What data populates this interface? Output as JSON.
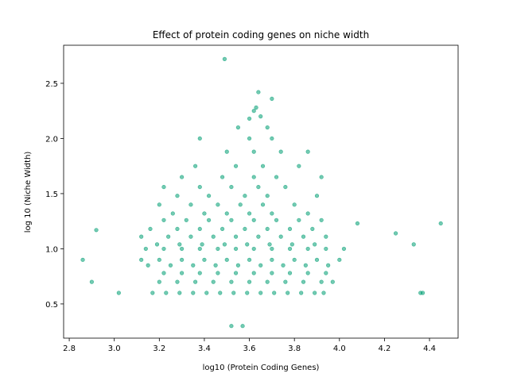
{
  "chart_data": {
    "type": "scatter",
    "title": "Effect of protein coding genes on niche width",
    "xlabel": "log10 (Protein Coding Genes)",
    "ylabel": "log 10 (Niche Width)",
    "color": "#009e73",
    "xlim": [
      2.775,
      4.527
    ],
    "ylim": [
      0.19,
      2.845
    ],
    "xticks": [
      2.8,
      {
        "value": 3,
        "label": "3.0"
      },
      3.2,
      3.4,
      3.6,
      3.8,
      {
        "value": 4,
        "label": "4.0"
      },
      4.2,
      4.4
    ],
    "yticks": [
      0.5,
      {
        "value": 1,
        "label": "1.0"
      },
      1.5,
      {
        "value": 2,
        "label": "2.0"
      },
      2.5
    ],
    "x": [
      2.86,
      2.9,
      2.92,
      3.02,
      4.08,
      4.25,
      4.33,
      4.36,
      4.37,
      4.45,
      3.49,
      3.52,
      3.57,
      3.64,
      3.63,
      3.7,
      3.65,
      3.62,
      3.6,
      3.17,
      3.23,
      3.29,
      3.35,
      3.41,
      3.47,
      3.53,
      3.59,
      3.65,
      3.71,
      3.77,
      3.83,
      3.89,
      3.93,
      3.2,
      3.28,
      3.36,
      3.44,
      3.52,
      3.6,
      3.68,
      3.76,
      3.84,
      3.92,
      3.97,
      3.22,
      3.3,
      3.38,
      3.46,
      3.54,
      3.62,
      3.7,
      3.78,
      3.86,
      3.94,
      3.15,
      3.25,
      3.35,
      3.45,
      3.55,
      3.65,
      3.75,
      3.85,
      3.95,
      3.12,
      3.2,
      3.3,
      3.4,
      3.5,
      3.6,
      3.7,
      3.8,
      3.9,
      4.0,
      3.14,
      3.22,
      3.3,
      3.38,
      3.46,
      3.54,
      3.62,
      3.7,
      3.78,
      3.86,
      3.94,
      4.02,
      3.19,
      3.29,
      3.39,
      3.49,
      3.59,
      3.69,
      3.79,
      3.89,
      3.12,
      3.24,
      3.34,
      3.44,
      3.54,
      3.64,
      3.74,
      3.84,
      3.94,
      3.16,
      3.28,
      3.38,
      3.48,
      3.58,
      3.68,
      3.78,
      3.88,
      3.22,
      3.32,
      3.42,
      3.52,
      3.62,
      3.72,
      3.82,
      3.92,
      3.26,
      3.4,
      3.5,
      3.6,
      3.7,
      3.86,
      3.2,
      3.34,
      3.46,
      3.56,
      3.66,
      3.8,
      3.28,
      3.42,
      3.58,
      3.68,
      3.9,
      3.22,
      3.38,
      3.52,
      3.64,
      3.76,
      3.3,
      3.48,
      3.62,
      3.72,
      3.92,
      3.36,
      3.54,
      3.66,
      3.82,
      3.5,
      3.62,
      3.74,
      3.86,
      3.38,
      3.6,
      3.7,
      3.55,
      3.68
    ],
    "y": [
      0.9,
      0.7,
      1.17,
      0.6,
      1.23,
      1.14,
      1.04,
      0.6,
      0.6,
      1.23,
      2.72,
      0.3,
      0.3,
      2.42,
      2.28,
      2.36,
      2.2,
      2.25,
      2.18,
      0.6,
      0.6,
      0.6,
      0.6,
      0.6,
      0.6,
      0.6,
      0.6,
      0.6,
      0.6,
      0.6,
      0.6,
      0.6,
      0.6,
      0.7,
      0.7,
      0.7,
      0.7,
      0.7,
      0.7,
      0.7,
      0.7,
      0.7,
      0.7,
      0.7,
      0.78,
      0.78,
      0.78,
      0.78,
      0.78,
      0.78,
      0.78,
      0.78,
      0.78,
      0.78,
      0.85,
      0.85,
      0.85,
      0.85,
      0.85,
      0.85,
      0.85,
      0.85,
      0.85,
      0.9,
      0.9,
      0.9,
      0.9,
      0.9,
      0.9,
      0.9,
      0.9,
      0.9,
      0.9,
      1.0,
      1.0,
      1.0,
      1.0,
      1.0,
      1.0,
      1.0,
      1.0,
      1.0,
      1.0,
      1.0,
      1.0,
      1.04,
      1.04,
      1.04,
      1.04,
      1.04,
      1.04,
      1.04,
      1.04,
      1.11,
      1.11,
      1.11,
      1.11,
      1.11,
      1.11,
      1.11,
      1.11,
      1.11,
      1.18,
      1.18,
      1.18,
      1.18,
      1.18,
      1.18,
      1.18,
      1.18,
      1.26,
      1.26,
      1.26,
      1.26,
      1.26,
      1.26,
      1.26,
      1.26,
      1.32,
      1.32,
      1.32,
      1.32,
      1.32,
      1.32,
      1.4,
      1.4,
      1.4,
      1.4,
      1.4,
      1.4,
      1.48,
      1.48,
      1.48,
      1.48,
      1.48,
      1.56,
      1.56,
      1.56,
      1.56,
      1.56,
      1.65,
      1.65,
      1.65,
      1.65,
      1.65,
      1.75,
      1.75,
      1.75,
      1.75,
      1.88,
      1.88,
      1.88,
      1.88,
      2.0,
      2.0,
      2.0,
      2.1,
      2.1
    ]
  }
}
